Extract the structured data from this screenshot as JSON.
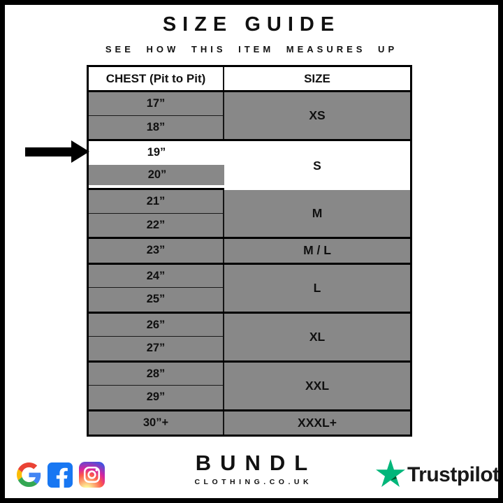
{
  "header": {
    "title": "SIZE GUIDE",
    "subtitle": "SEE HOW THIS ITEM MEASURES UP"
  },
  "table": {
    "columns": [
      "CHEST (Pit to Pit)",
      "SIZE"
    ],
    "groups": [
      {
        "size": "XS",
        "chest": [
          "17”",
          "18”"
        ],
        "highlighted": false
      },
      {
        "size": "S",
        "chest": [
          "19”",
          "20”"
        ],
        "highlighted": true
      },
      {
        "size": "M",
        "chest": [
          "21”",
          "22”"
        ],
        "highlighted": false
      },
      {
        "size": "M / L",
        "chest": [
          "23”"
        ],
        "highlighted": false
      },
      {
        "size": "L",
        "chest": [
          "24”",
          "25”"
        ],
        "highlighted": false
      },
      {
        "size": "XL",
        "chest": [
          "26”",
          "27”"
        ],
        "highlighted": false
      },
      {
        "size": "XXL",
        "chest": [
          "28”",
          "29”"
        ],
        "highlighted": false
      },
      {
        "size": "XXXL+",
        "chest": [
          "30”+"
        ],
        "highlighted": false
      }
    ],
    "arrow_points_to": "19”"
  },
  "chart_data": {
    "type": "table",
    "title": "SIZE GUIDE",
    "subtitle": "SEE HOW THIS ITEM MEASURES UP",
    "columns": [
      "CHEST (Pit to Pit)",
      "SIZE"
    ],
    "rows": [
      [
        "17”",
        "XS"
      ],
      [
        "18”",
        "XS"
      ],
      [
        "19”",
        "S"
      ],
      [
        "20”",
        "S"
      ],
      [
        "21”",
        "M"
      ],
      [
        "22”",
        "M"
      ],
      [
        "23”",
        "M / L"
      ],
      [
        "24”",
        "L"
      ],
      [
        "25”",
        "L"
      ],
      [
        "26”",
        "XL"
      ],
      [
        "27”",
        "XL"
      ],
      [
        "28”",
        "XXL"
      ],
      [
        "29”",
        "XXL"
      ],
      [
        "30”+",
        "XXXL+"
      ]
    ],
    "highlighted_rows": [
      "19”",
      "20”"
    ],
    "highlighted_size": "S"
  },
  "footer": {
    "brand": {
      "name": "BUNDL",
      "domain": "CLOTHING.CO.UK"
    },
    "social_icons": [
      "google-icon",
      "facebook-icon",
      "instagram-icon"
    ],
    "trustpilot_label": "Trustpilot"
  },
  "colors": {
    "cell_gray": "#888888",
    "highlight_white": "#ffffff",
    "line_black": "#000000",
    "facebook_blue": "#1877F2",
    "trustpilot_green": "#00B67A",
    "trustpilot_dark_green": "#005128",
    "google_blue": "#4285F4",
    "google_red": "#EA4335",
    "google_yellow": "#FBBC05",
    "google_green": "#34A853",
    "instagram_gradient": [
      "#fdf497",
      "#fd5949",
      "#d6249f",
      "#285AEB"
    ]
  }
}
